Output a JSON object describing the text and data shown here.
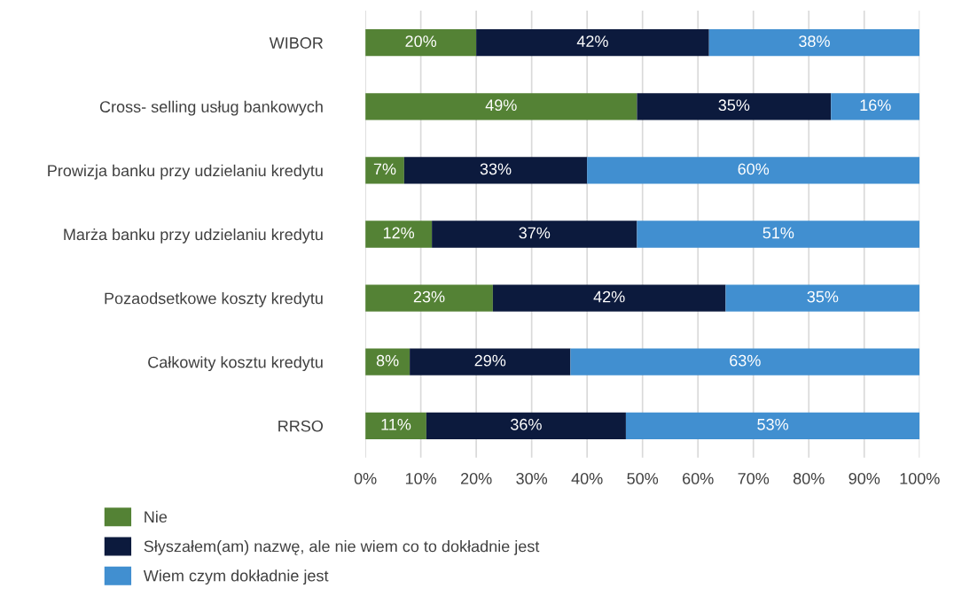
{
  "chart_data": {
    "type": "bar",
    "orientation": "horizontal",
    "stacked": true,
    "categories": [
      "WIBOR",
      "Cross- selling usług bankowych",
      "Prowizja banku przy udzielaniu kredytu",
      "Marża banku przy udzielaniu kredytu",
      "Pozaodsetkowe koszty kredytu",
      "Całkowity kosztu kredytu",
      "RRSO"
    ],
    "series": [
      {
        "name": "Nie",
        "color": "#548235",
        "values": [
          20,
          49,
          7,
          12,
          23,
          8,
          11
        ],
        "value_labels": [
          "20%",
          "49%",
          "7%",
          "12%",
          "23%",
          "8%",
          "11%"
        ]
      },
      {
        "name": "Słyszałem(am) nazwę, ale nie wiem co to dokładnie jest",
        "color": "#0c1a3d",
        "values": [
          42,
          35,
          33,
          37,
          42,
          29,
          36
        ],
        "value_labels": [
          "42%",
          "35%",
          "33%",
          "37%",
          "42%",
          "29%",
          "36%"
        ]
      },
      {
        "name": "Wiem czym dokładnie jest",
        "color": "#418fd0",
        "values": [
          38,
          16,
          60,
          51,
          35,
          63,
          53
        ],
        "value_labels": [
          "38%",
          "16%",
          "60%",
          "51%",
          "35%",
          "63%",
          "53%"
        ]
      }
    ],
    "xlim": [
      0,
      100
    ],
    "xticks": [
      {
        "value": 0,
        "label": "0%"
      },
      {
        "value": 10,
        "label": "10%"
      },
      {
        "value": 20,
        "label": "20%"
      },
      {
        "value": 30,
        "label": "30%"
      },
      {
        "value": 40,
        "label": "40%"
      },
      {
        "value": 50,
        "label": "50%"
      },
      {
        "value": 60,
        "label": "60%"
      },
      {
        "value": 70,
        "label": "70%"
      },
      {
        "value": 80,
        "label": "80%"
      },
      {
        "value": 90,
        "label": "90%"
      },
      {
        "value": 100,
        "label": "100%"
      }
    ],
    "grid": "x",
    "legend": "bottom"
  }
}
